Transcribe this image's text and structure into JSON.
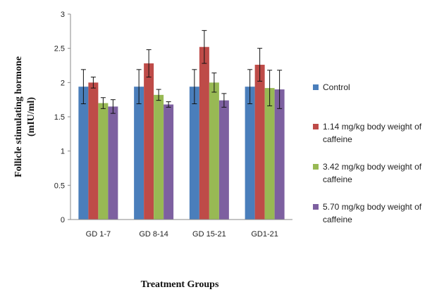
{
  "chart_data": {
    "type": "bar",
    "title": "",
    "ylabel_lines": [
      "Follicle stimulating hormone",
      "(mIU/ml)"
    ],
    "xlabel": "Treatment Groups",
    "categories": [
      "GD 1-7",
      "GD 8-14",
      "GD 15-21",
      "GD1-21"
    ],
    "ylim": [
      0,
      3
    ],
    "yticks": [
      "0",
      "0.5",
      "1",
      "1.5",
      "2",
      "2.5",
      "3"
    ],
    "grid": false,
    "legend_position": "right",
    "series": [
      {
        "name": "Control",
        "name_lines": [
          "Control"
        ],
        "color": "#4a7ebb",
        "values": [
          1.94,
          1.94,
          1.94,
          1.94
        ],
        "errors": [
          0.25,
          0.25,
          0.25,
          0.25
        ]
      },
      {
        "name": "1.14 mg/kg body weight of caffeine",
        "name_lines": [
          "1.14 mg/kg body weight of",
          "caffeine"
        ],
        "color": "#be4b48",
        "values": [
          2.0,
          2.28,
          2.52,
          2.26
        ],
        "errors": [
          0.08,
          0.2,
          0.24,
          0.24
        ]
      },
      {
        "name": "3.42 mg/kg body weight of caffeine",
        "name_lines": [
          "3.42 mg/kg body weight of",
          "caffeine"
        ],
        "color": "#98b954",
        "values": [
          1.7,
          1.82,
          2.0,
          1.92
        ],
        "errors": [
          0.08,
          0.08,
          0.14,
          0.26
        ]
      },
      {
        "name": "5.70 mg/kg body weight of caffeine",
        "name_lines": [
          "5.70 mg/kg body weight of",
          "caffeine"
        ],
        "color": "#7d60a0",
        "values": [
          1.65,
          1.68,
          1.74,
          1.9
        ],
        "errors": [
          0.1,
          0.04,
          0.1,
          0.28
        ]
      }
    ]
  }
}
